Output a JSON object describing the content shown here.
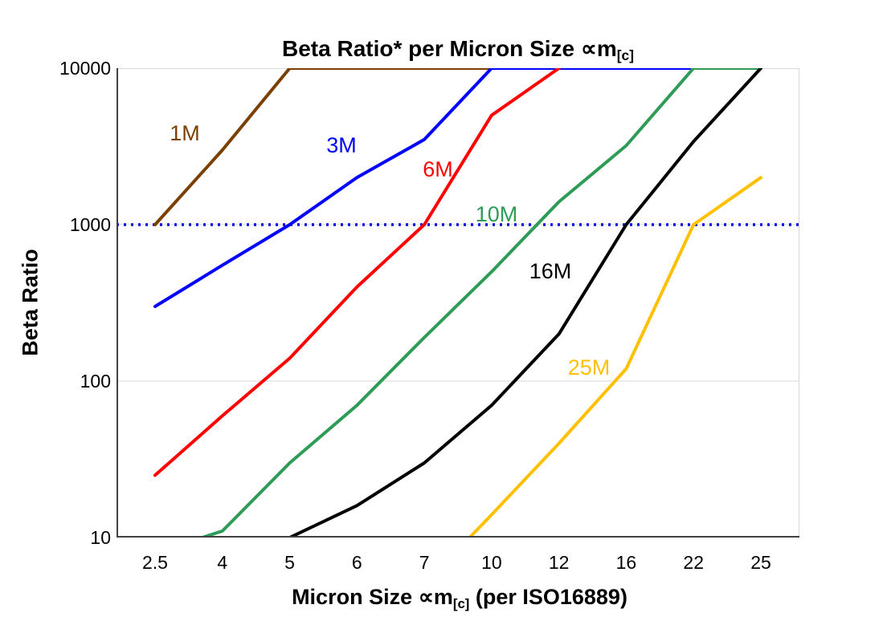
{
  "title": {
    "main": "Beta Ratio* per Micron Size ∝m",
    "sub": "[c]"
  },
  "axes": {
    "y_label": "Beta Ratio",
    "x_label_pre": "Micron Size ∝m",
    "x_label_sub": "[c]",
    "x_label_post": " (per ISO16889)",
    "y_ticks": [
      "10",
      "100",
      "1000",
      "10000"
    ],
    "x_ticks": [
      "2.5",
      "4",
      "5",
      "6",
      "7",
      "10",
      "12",
      "16",
      "22",
      "25"
    ]
  },
  "chart_data": {
    "type": "line",
    "title": "Beta Ratio* per Micron Size ∝m[c]",
    "xlabel": "Micron Size ∝m[c] (per ISO16889)",
    "ylabel": "Beta Ratio",
    "x_scale": "categorical",
    "y_scale": "log",
    "ylim": [
      10,
      10000
    ],
    "grid": "horizontal-light",
    "legend_position": "inline-labels",
    "categories": [
      2.5,
      4,
      5,
      6,
      7,
      10,
      12,
      16,
      22,
      25
    ],
    "reference_line": {
      "y": 1000,
      "style": "dotted",
      "color": "#0000E0"
    },
    "series": [
      {
        "name": "1M",
        "color": "#7B3F00",
        "values": [
          1000,
          3000,
          10000,
          10000,
          10000,
          10000,
          null,
          null,
          null,
          null
        ],
        "label_pos": [
          85,
          83
        ]
      },
      {
        "name": "3M",
        "color": "#0000FF",
        "values": [
          300,
          550,
          1000,
          2000,
          3500,
          10000,
          10000,
          10000,
          10000,
          null
        ],
        "label_pos": [
          280,
          98
        ]
      },
      {
        "name": "6M",
        "color": "#FF0000",
        "values": [
          25,
          60,
          140,
          400,
          1000,
          5000,
          10000,
          null,
          null,
          null
        ],
        "label_pos": [
          400,
          128
        ]
      },
      {
        "name": "10M",
        "color": "#2E9B57",
        "values": [
          8,
          11,
          30,
          70,
          190,
          500,
          1400,
          3200,
          10000,
          10000
        ],
        "label_pos": [
          473,
          184
        ]
      },
      {
        "name": "16M",
        "color": "#000000",
        "values": [
          null,
          null,
          10,
          16,
          30,
          70,
          200,
          1000,
          3400,
          10000
        ],
        "label_pos": [
          540,
          255
        ]
      },
      {
        "name": "25M",
        "color": "#FFC000",
        "values": [
          null,
          null,
          null,
          null,
          5,
          14,
          40,
          120,
          1000,
          2000
        ],
        "label_pos": [
          588,
          375
        ]
      }
    ]
  }
}
